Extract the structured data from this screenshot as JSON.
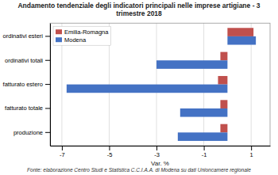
{
  "chart_data": {
    "type": "bar",
    "orientation": "horizontal",
    "title": "Andamento tendenziale degli indicatori principali nelle imprese artigiane - 3 trimestre 2018",
    "categories": [
      "ordinativi esteri",
      "ordinativi totali",
      "fatturato estero",
      "fatturato totale",
      "produzione"
    ],
    "series": [
      {
        "name": "Emilia-Romagna",
        "color": "#C0504D",
        "values": [
          1.1,
          -0.3,
          -0.4,
          -0.3,
          -0.3
        ]
      },
      {
        "name": "Modena",
        "color": "#4472C4",
        "values": [
          1.2,
          -3.0,
          -6.8,
          -2.0,
          -2.1
        ]
      }
    ],
    "xlabel": "Var. %",
    "xlim": [
      -7.5,
      1.8
    ],
    "xticks": [
      -7,
      -5,
      -3,
      -1,
      1
    ],
    "grid": true,
    "legend": "upper left",
    "footnote": "Fonte: elaborazione Centro Studi e Statistica C.C.I.A.A. di Modena su dati Unioncamere regionale"
  }
}
